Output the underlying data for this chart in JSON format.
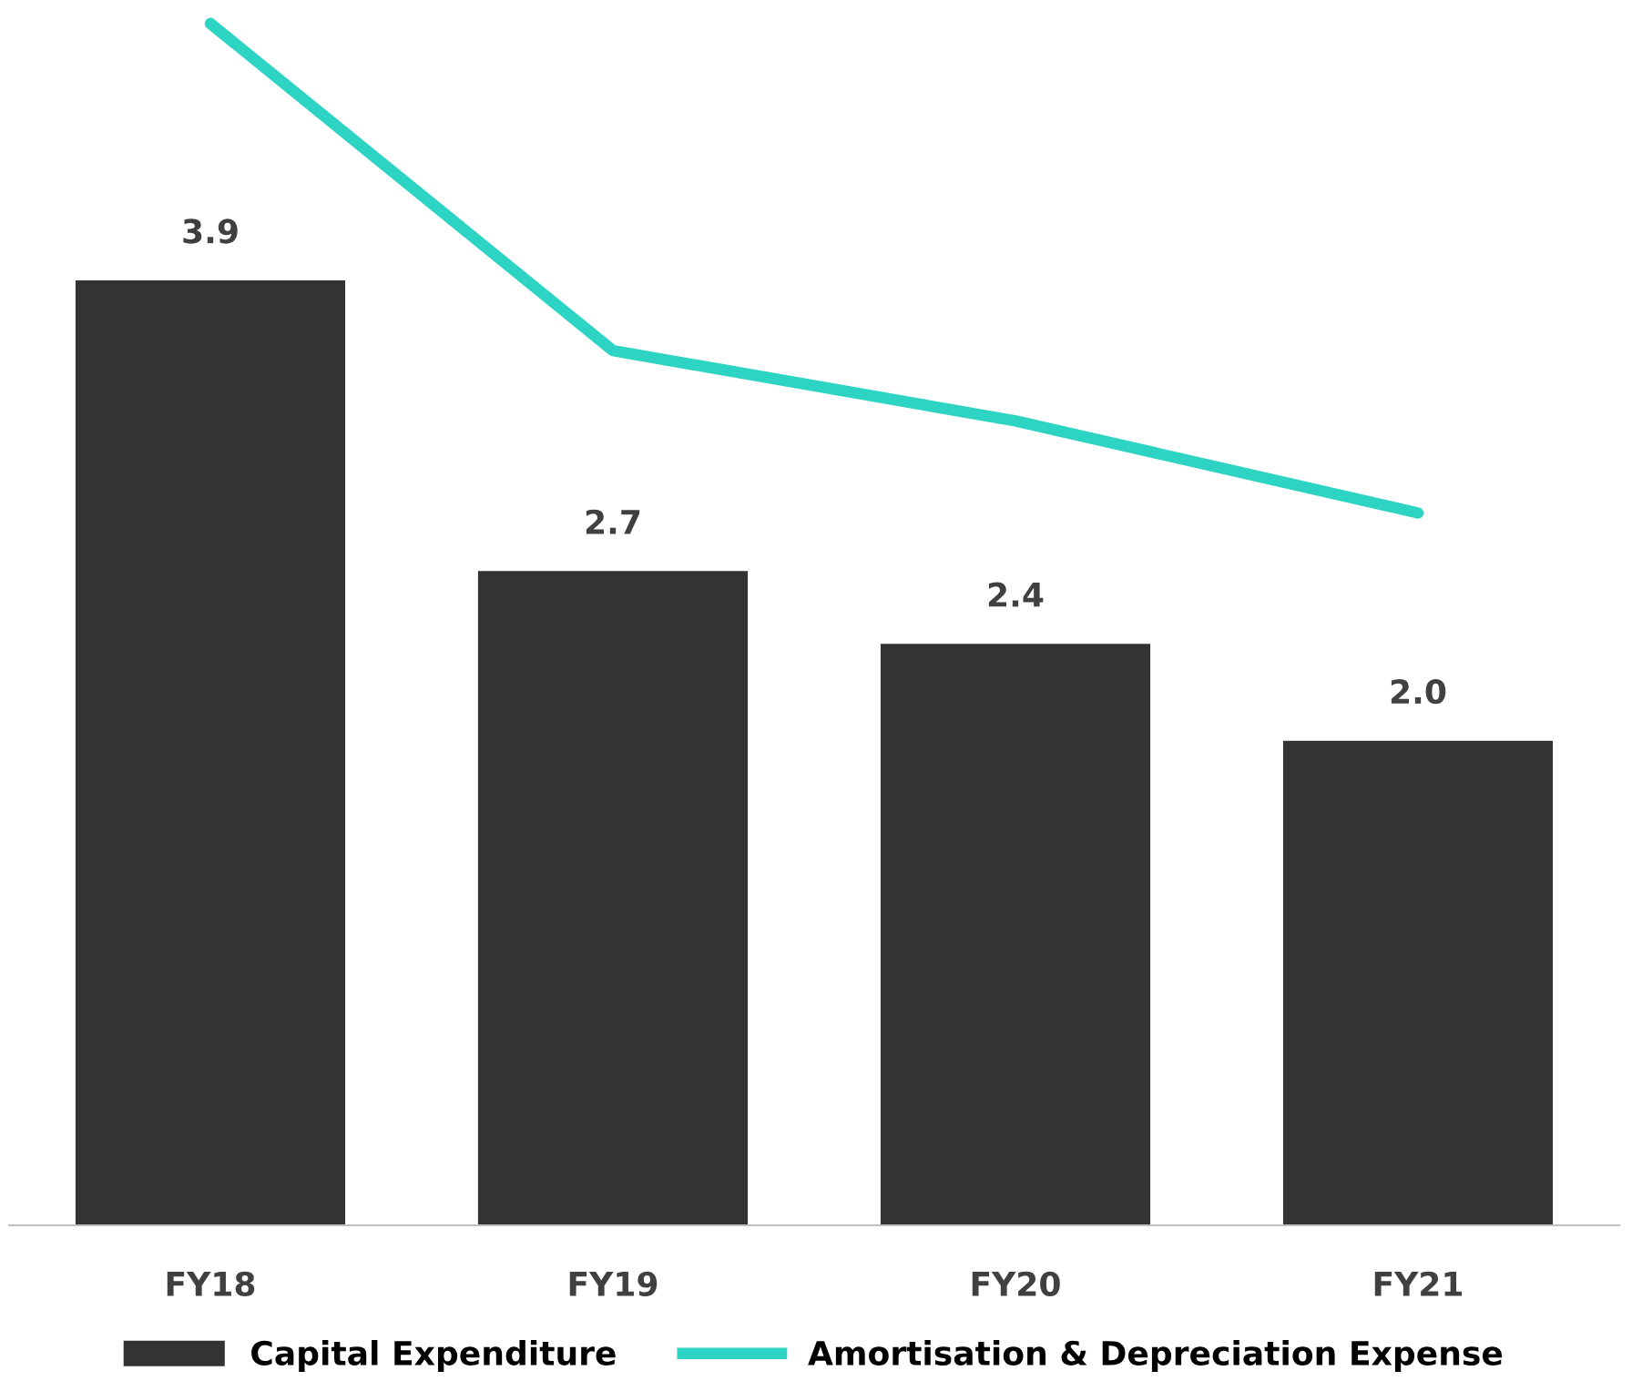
{
  "chart_data": {
    "type": "bar",
    "categories": [
      "FY18",
      "FY19",
      "FY20",
      "FY21"
    ],
    "series": [
      {
        "name": "Capital Expenditure",
        "color": "#333333",
        "values": [
          3.9,
          2.7,
          2.4,
          2.0
        ],
        "value_labels": [
          "3.9",
          "2.7",
          "2.4",
          "2.0"
        ]
      },
      {
        "name": "Amortisation & Depreciation Expense",
        "type": "line",
        "color": "#2dd4c4",
        "values": [
          4.96,
          3.61,
          3.32,
          2.94
        ]
      }
    ],
    "tick_labels": "x",
    "grid": false,
    "legend": "bottom",
    "marker": "none",
    "line_style": "solid"
  }
}
